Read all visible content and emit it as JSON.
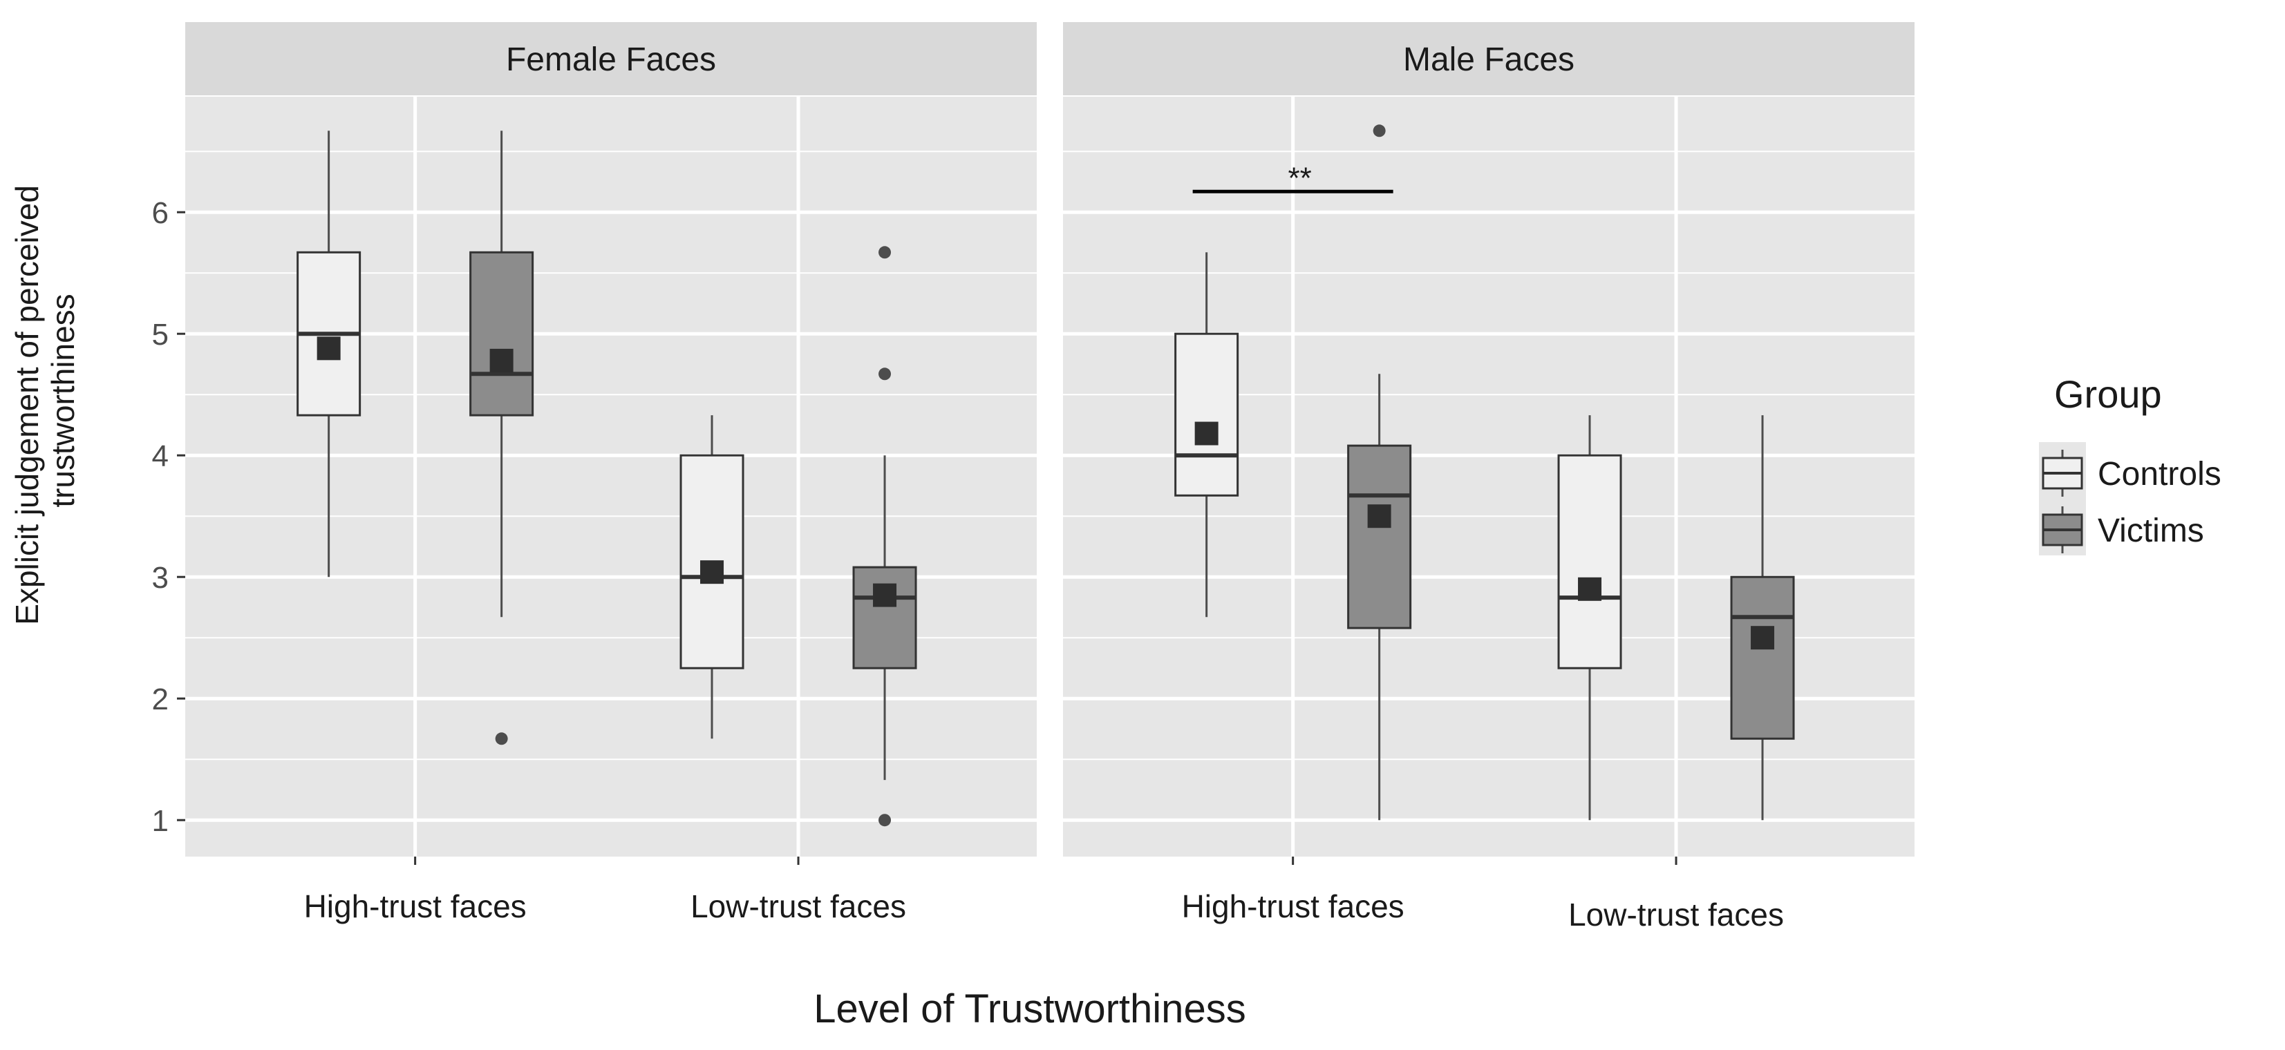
{
  "chart_data": {
    "type": "boxplot",
    "y_axis_label_lines": [
      "Explicit judgement of perceived",
      "trustworthiness"
    ],
    "x_axis_label": "Level of Trustworthiness",
    "ylim": [
      0.7,
      6.95
    ],
    "y_ticks": [
      "1",
      "2",
      "3",
      "4",
      "5",
      "6"
    ],
    "y_minor_ticks": [
      1.5,
      2.5,
      3.5,
      4.5,
      5.5,
      6.5
    ],
    "legend": {
      "title": "Group",
      "position": "right",
      "items": [
        {
          "label": "Controls",
          "color": "#f0f0f0"
        },
        {
          "label": "Victims",
          "color": "#8c8c8c"
        }
      ]
    },
    "colors": {
      "panel_bg": "#e6e6e6",
      "strip_bg": "#d9d9d9",
      "grid": "#ffffff",
      "controls_fill": "#f0f0f0",
      "victims_fill": "#8c8c8c",
      "outline": "#333333",
      "whisker": "#4d4d4d",
      "mean_marker": "#2e2e2e"
    },
    "panels": [
      {
        "strip": "Female Faces",
        "categories": [
          "High-trust faces",
          "Low-trust faces"
        ],
        "boxes": [
          {
            "category": "High-trust faces",
            "group": "Controls",
            "min": 3.0,
            "q1": 4.33,
            "median": 5.0,
            "q3": 5.67,
            "max": 6.67,
            "mean": 4.88,
            "outliers": []
          },
          {
            "category": "High-trust faces",
            "group": "Victims",
            "min": 2.67,
            "q1": 4.33,
            "median": 4.67,
            "q3": 5.67,
            "max": 6.67,
            "mean": 4.78,
            "outliers": [
              1.67
            ]
          },
          {
            "category": "Low-trust faces",
            "group": "Controls",
            "min": 1.67,
            "q1": 2.25,
            "median": 3.0,
            "q3": 4.0,
            "max": 4.33,
            "mean": 3.04,
            "outliers": []
          },
          {
            "category": "Low-trust faces",
            "group": "Victims",
            "min": 1.33,
            "q1": 2.25,
            "median": 2.83,
            "q3": 3.08,
            "max": 4.0,
            "mean": 2.85,
            "outliers": [
              5.67,
              4.67,
              1.0
            ]
          }
        ],
        "annotations": []
      },
      {
        "strip": "Male Faces",
        "categories": [
          "High-trust faces",
          "Low-trust faces"
        ],
        "boxes": [
          {
            "category": "High-trust faces",
            "group": "Controls",
            "min": 2.67,
            "q1": 3.67,
            "median": 4.0,
            "q3": 5.0,
            "max": 5.67,
            "mean": 4.18,
            "outliers": []
          },
          {
            "category": "High-trust faces",
            "group": "Victims",
            "min": 1.0,
            "q1": 2.58,
            "median": 3.67,
            "q3": 4.08,
            "max": 4.67,
            "mean": 3.5,
            "outliers": [
              6.67
            ]
          },
          {
            "category": "Low-trust faces",
            "group": "Controls",
            "min": 1.0,
            "q1": 2.25,
            "median": 2.83,
            "q3": 4.0,
            "max": 4.33,
            "mean": 2.9,
            "outliers": []
          },
          {
            "category": "Low-trust faces",
            "group": "Victims",
            "min": 1.0,
            "q1": 1.67,
            "median": 2.67,
            "q3": 3.0,
            "max": 4.33,
            "mean": 2.5,
            "outliers": []
          }
        ],
        "annotations": [
          {
            "text": "**",
            "category": "High-trust faces",
            "y": 6.17,
            "label_y": 6.3
          }
        ]
      }
    ]
  }
}
